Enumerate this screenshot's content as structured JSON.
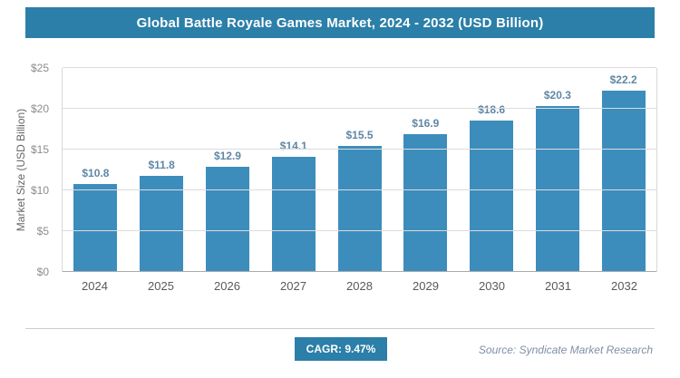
{
  "header": {
    "title": "Global Battle Royale Games Market, 2024 - 2032 (USD Billion)"
  },
  "chart_data": {
    "type": "bar",
    "title": "Global Battle Royale Games Market, 2024 - 2032 (USD Billion)",
    "categories": [
      "2024",
      "2025",
      "2026",
      "2027",
      "2028",
      "2029",
      "2030",
      "2031",
      "2032"
    ],
    "values": [
      10.8,
      11.8,
      12.9,
      14.1,
      15.5,
      16.9,
      18.6,
      20.3,
      22.2
    ],
    "data_labels": [
      "$10.8",
      "$11.8",
      "$12.9",
      "$14.1",
      "$15.5",
      "$16.9",
      "$18.6",
      "$20.3",
      "$22.2"
    ],
    "xlabel": "",
    "ylabel": "Market Size (USD Billion)",
    "ylim": [
      0,
      25
    ],
    "yticks": [
      0,
      5,
      10,
      15,
      20,
      25
    ],
    "ytick_labels": [
      "$0",
      "$5",
      "$10",
      "$15",
      "$20",
      "$25"
    ],
    "grid": true,
    "legend": "none",
    "bar_color": "#3c8dbc"
  },
  "footer": {
    "cagr_label": "CAGR: 9.47%",
    "source": "Source: Syndicate Market Research"
  },
  "colors": {
    "accent": "#2b7fa8",
    "bar": "#3c8dbc",
    "value_label": "#5f87a5",
    "gridline": "#dcdcdc"
  }
}
